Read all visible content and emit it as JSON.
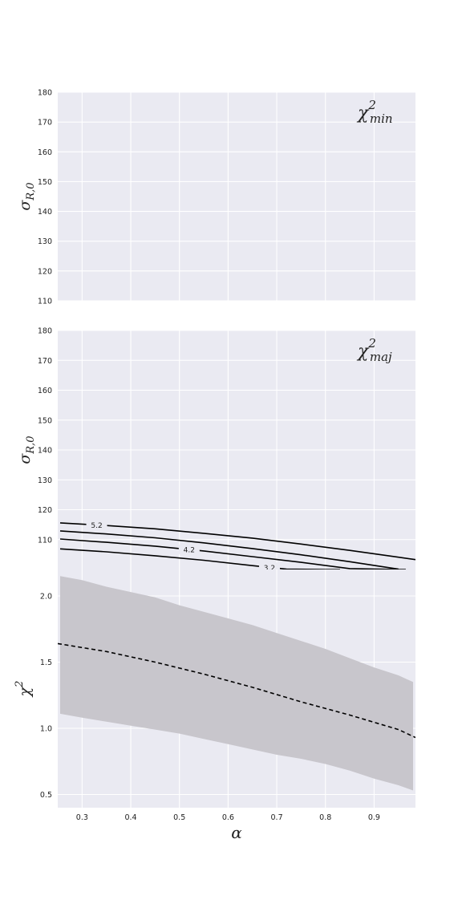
{
  "figure": {
    "panels": [
      {
        "id": "min",
        "annotation_base": "χ",
        "annotation_sup": "2",
        "annotation_sub": "min",
        "ylabel_base": "σ",
        "ylabel_sub": "R,0"
      },
      {
        "id": "maj",
        "annotation_base": "χ",
        "annotation_sup": "2",
        "annotation_sub": "maj",
        "ylabel_base": "σ",
        "ylabel_sub": "R,0"
      },
      {
        "id": "chi",
        "ylabel_base": "χ",
        "ylabel_sup": "2"
      }
    ],
    "xlabel": "α",
    "colors": {
      "background": "#eaeaf2",
      "grid": "#ffffff",
      "band": "#c8c6cc",
      "line": "#000000"
    }
  },
  "chart_data": [
    {
      "type": "line",
      "panel": "chi2-min",
      "xlim": [
        0.25,
        0.985
      ],
      "ylim": [
        110,
        180
      ],
      "yticks": [
        "110",
        "120",
        "130",
        "140",
        "150",
        "160",
        "170",
        "180"
      ],
      "grid": true,
      "series": []
    },
    {
      "type": "line",
      "panel": "chi2-maj",
      "xlim": [
        0.25,
        0.985
      ],
      "ylim": [
        100,
        180
      ],
      "yticks": [
        "110",
        "120",
        "130",
        "140",
        "150",
        "160",
        "170",
        "180"
      ],
      "grid": true,
      "contours": [
        {
          "level": "5.2",
          "label_x": 0.33,
          "x": [
            0.255,
            0.35,
            0.45,
            0.55,
            0.65,
            0.75,
            0.85,
            0.95,
            0.985
          ],
          "y": [
            115.6,
            114.7,
            113.6,
            112.1,
            110.5,
            108.5,
            106.4,
            104.1,
            103.3
          ]
        },
        {
          "level": "",
          "x": [
            0.255,
            0.35,
            0.45,
            0.55,
            0.65,
            0.75,
            0.85,
            0.95
          ],
          "y": [
            112.9,
            111.9,
            110.6,
            108.9,
            107.0,
            104.9,
            102.6,
            100.1
          ]
        },
        {
          "level": "4.2",
          "label_x": 0.52,
          "x": [
            0.255,
            0.35,
            0.45,
            0.55,
            0.65,
            0.75,
            0.85,
            0.95,
            0.965
          ],
          "y": [
            110.2,
            109.1,
            107.8,
            106.2,
            104.3,
            102.4,
            100.3,
            100.0,
            100.0
          ]
        },
        {
          "level": "3.2",
          "label_x": 0.685,
          "x": [
            0.255,
            0.35,
            0.45,
            0.55,
            0.65,
            0.72,
            0.8,
            0.83
          ],
          "y": [
            106.9,
            105.9,
            104.6,
            103.1,
            101.3,
            100.1,
            100.0,
            100.0
          ]
        }
      ]
    },
    {
      "type": "area",
      "panel": "chi2",
      "xlim": [
        0.25,
        0.985
      ],
      "ylim": [
        0.4,
        2.2
      ],
      "yticks": [
        "0.5",
        "1.0",
        "1.5",
        "2.0"
      ],
      "xticks": [
        "0.3",
        "0.4",
        "0.5",
        "0.6",
        "0.7",
        "0.8",
        "0.9"
      ],
      "grid": true,
      "band": {
        "x": [
          0.255,
          0.3,
          0.35,
          0.4,
          0.45,
          0.5,
          0.55,
          0.6,
          0.65,
          0.7,
          0.75,
          0.8,
          0.85,
          0.9,
          0.95,
          0.98
        ],
        "upper": [
          2.15,
          2.12,
          2.07,
          2.03,
          1.99,
          1.93,
          1.88,
          1.83,
          1.78,
          1.72,
          1.66,
          1.6,
          1.53,
          1.46,
          1.4,
          1.35
        ],
        "lower": [
          1.11,
          1.08,
          1.05,
          1.02,
          0.99,
          0.96,
          0.92,
          0.88,
          0.84,
          0.8,
          0.77,
          0.73,
          0.68,
          0.62,
          0.57,
          0.53
        ]
      },
      "series": [
        {
          "style": "dashed",
          "x": [
            0.25,
            0.35,
            0.45,
            0.55,
            0.65,
            0.75,
            0.85,
            0.95,
            0.985
          ],
          "y": [
            1.64,
            1.58,
            1.5,
            1.41,
            1.31,
            1.2,
            1.1,
            0.99,
            0.93
          ]
        }
      ]
    }
  ]
}
